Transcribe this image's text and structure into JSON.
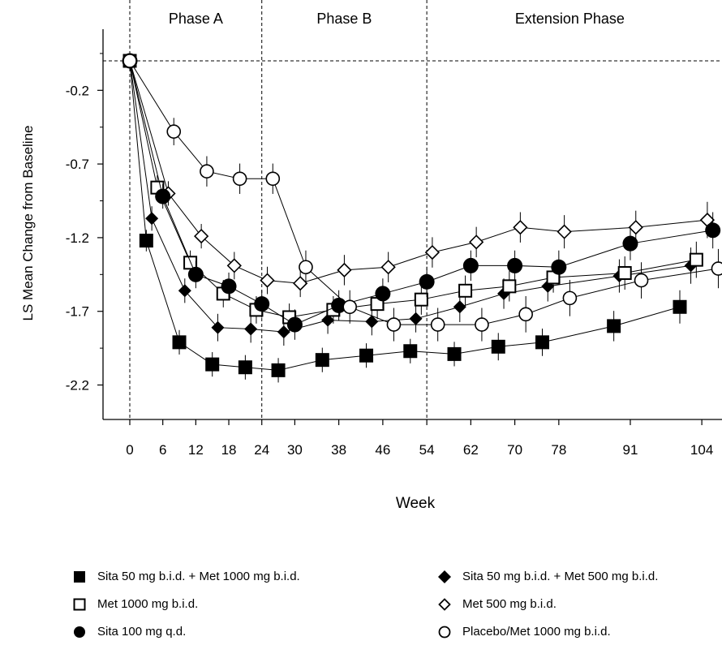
{
  "chart_data": {
    "type": "line",
    "xlabel": "Week",
    "ylabel": "LS Mean Change from Baseline",
    "x_ticks": [
      0,
      6,
      12,
      18,
      24,
      30,
      38,
      46,
      54,
      62,
      70,
      78,
      91,
      104
    ],
    "y_ticks": [
      -0.2,
      -0.7,
      -1.2,
      -1.7,
      -2.2
    ],
    "ylim": [
      -2.43,
      0.43
    ],
    "reference_line_y": 0.0,
    "phase_dividers_week": [
      0,
      24,
      54
    ],
    "phases": [
      {
        "label": "Phase A",
        "center_week": 12
      },
      {
        "label": "Phase B",
        "center_week": 39
      },
      {
        "label": "Extension Phase",
        "center_week": 80
      }
    ],
    "series": [
      {
        "name": "Sita 50 mg b.i.d. + Met 1000 mg b.i.d.",
        "marker": "square-filled",
        "x": [
          0,
          3,
          9,
          15,
          21,
          27,
          35,
          43,
          51,
          59,
          67,
          75,
          88,
          100
        ],
        "y": [
          0.0,
          -1.22,
          -1.91,
          -2.06,
          -2.08,
          -2.1,
          -2.03,
          -2.0,
          -1.97,
          -1.99,
          -1.94,
          -1.91,
          -1.8,
          -1.67
        ],
        "err": [
          0.03,
          0.04,
          0.05,
          0.05,
          0.05,
          0.05,
          0.05,
          0.05,
          0.05,
          0.05,
          0.06,
          0.06,
          0.07,
          0.08
        ]
      },
      {
        "name": "Sita 50 mg b.i.d. + Met 500 mg b.i.d.",
        "marker": "diamond-filled",
        "x": [
          0,
          4,
          10,
          16,
          22,
          28,
          36,
          44,
          52,
          60,
          68,
          76,
          89,
          102
        ],
        "y": [
          0.0,
          -1.07,
          -1.56,
          -1.81,
          -1.82,
          -1.84,
          -1.76,
          -1.77,
          -1.75,
          -1.67,
          -1.58,
          -1.53,
          -1.46,
          -1.39
        ],
        "err": [
          0.03,
          0.05,
          0.05,
          0.06,
          0.06,
          0.06,
          0.06,
          0.06,
          0.06,
          0.07,
          0.07,
          0.07,
          0.08,
          0.09
        ]
      },
      {
        "name": "Met 1000 mg b.i.d.",
        "marker": "square-open",
        "x": [
          0,
          5,
          11,
          17,
          23,
          29,
          37,
          45,
          53,
          61,
          69,
          77,
          90,
          103
        ],
        "y": [
          0.0,
          -0.86,
          -1.37,
          -1.58,
          -1.69,
          -1.74,
          -1.69,
          -1.65,
          -1.62,
          -1.56,
          -1.53,
          -1.47,
          -1.44,
          -1.35
        ],
        "err": [
          0.03,
          0.05,
          0.05,
          0.06,
          0.06,
          0.06,
          0.06,
          0.07,
          0.07,
          0.07,
          0.07,
          0.07,
          0.08,
          0.09
        ]
      },
      {
        "name": "Met 500 mg b.i.d.",
        "marker": "diamond-open",
        "x": [
          0,
          7,
          13,
          19,
          25,
          31,
          39,
          47,
          55,
          63,
          71,
          79,
          92,
          105
        ],
        "y": [
          0.0,
          -0.9,
          -1.19,
          -1.39,
          -1.49,
          -1.51,
          -1.42,
          -1.4,
          -1.3,
          -1.23,
          -1.13,
          -1.16,
          -1.13,
          -1.08
        ],
        "err": [
          0.03,
          0.05,
          0.05,
          0.06,
          0.06,
          0.06,
          0.07,
          0.07,
          0.07,
          0.07,
          0.07,
          0.08,
          0.08,
          0.09
        ]
      },
      {
        "name": "Sita 100 mg q.d.",
        "marker": "circle-filled",
        "x": [
          0,
          6,
          12,
          18,
          24,
          30,
          38,
          46,
          54,
          62,
          70,
          78,
          91,
          106
        ],
        "y": [
          0.0,
          -0.92,
          -1.45,
          -1.53,
          -1.65,
          -1.79,
          -1.66,
          -1.58,
          -1.5,
          -1.39,
          -1.39,
          -1.4,
          -1.24,
          -1.15
        ],
        "err": [
          0.03,
          0.05,
          0.06,
          0.06,
          0.06,
          0.07,
          0.07,
          0.07,
          0.07,
          0.07,
          0.07,
          0.08,
          0.08,
          0.09
        ]
      },
      {
        "name": "Placebo/Met 1000 mg b.i.d.",
        "marker": "circle-open",
        "x": [
          0,
          8,
          14,
          20,
          26,
          32,
          40,
          48,
          56,
          64,
          72,
          80,
          93,
          107
        ],
        "y": [
          0.0,
          -0.48,
          -0.75,
          -0.8,
          -0.8,
          -1.4,
          -1.67,
          -1.79,
          -1.79,
          -1.79,
          -1.72,
          -1.61,
          -1.49,
          -1.41
        ],
        "err": [
          0.03,
          0.06,
          0.07,
          0.07,
          0.07,
          0.08,
          0.08,
          0.08,
          0.08,
          0.08,
          0.09,
          0.09,
          0.09,
          0.1
        ]
      }
    ]
  }
}
